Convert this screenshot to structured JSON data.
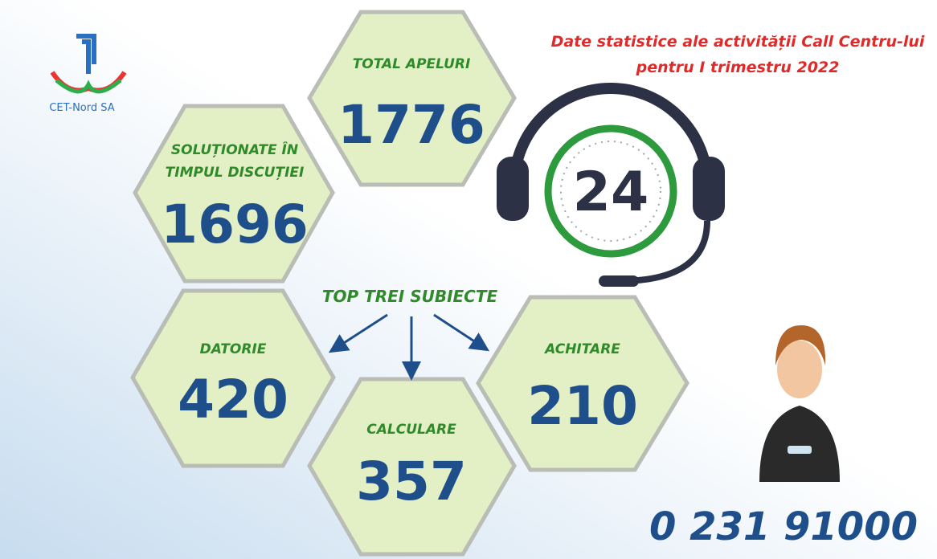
{
  "logo": {
    "text": "CET-Nord SA"
  },
  "header": {
    "title_line1": "Date statistice ale activității Call Centru-lui",
    "title_line2": "pentru I trimestru 2022"
  },
  "stats": [
    {
      "label": "TOTAL APELURI",
      "value": "1776"
    },
    {
      "label_line1": "SOLUȚIONATE ÎN",
      "label_line2": "TIMPUL DISCUȚIEI",
      "value": "1696"
    }
  ],
  "topics": {
    "title": "TOP TREI SUBIECTE",
    "items": [
      {
        "label": "DATORIE",
        "value": "420"
      },
      {
        "label": "CALCULARE",
        "value": "357"
      },
      {
        "label": "ACHITARE",
        "value": "210"
      }
    ]
  },
  "icon": {
    "text": "24"
  },
  "phone": "0 231 91000"
}
